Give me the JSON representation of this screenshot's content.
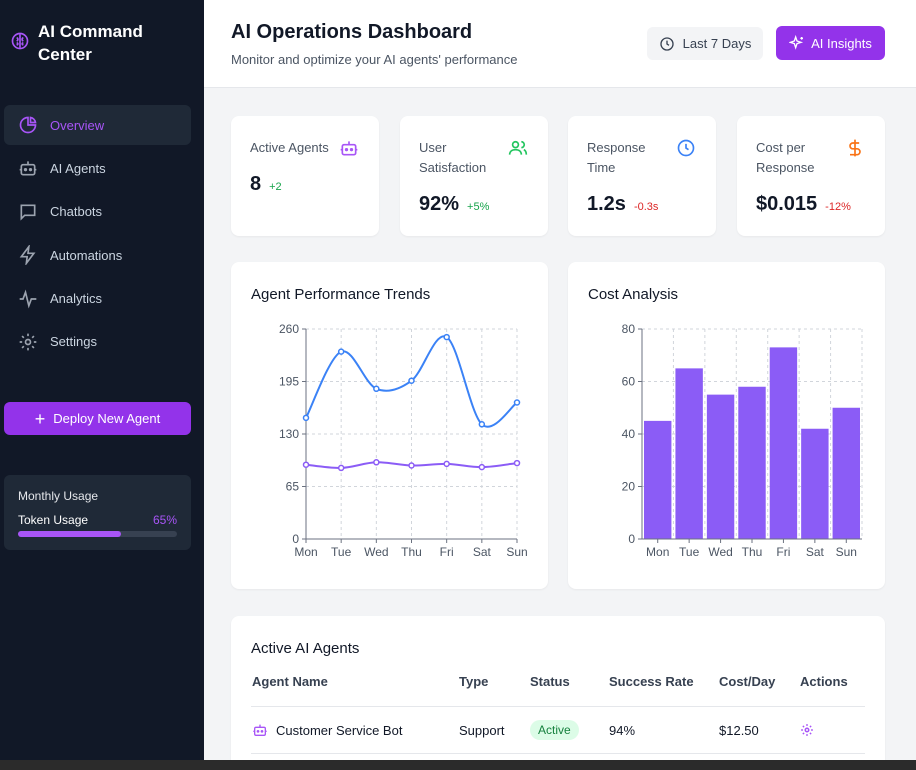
{
  "app": {
    "title": "AI Command Center"
  },
  "sidebar": {
    "items": [
      {
        "label": "Overview",
        "icon": "pie-chart-icon",
        "active": true
      },
      {
        "label": "AI Agents",
        "icon": "bot-icon"
      },
      {
        "label": "Chatbots",
        "icon": "chat-icon"
      },
      {
        "label": "Automations",
        "icon": "lightning-icon"
      },
      {
        "label": "Analytics",
        "icon": "activity-icon"
      },
      {
        "label": "Settings",
        "icon": "gear-icon"
      }
    ],
    "deploy_label": "Deploy New Agent",
    "usage": {
      "title": "Monthly Usage",
      "label": "Token Usage",
      "percent_text": "65%",
      "percent": 65
    }
  },
  "header": {
    "title": "AI Operations Dashboard",
    "subtitle": "Monitor and optimize your AI agents' performance",
    "range_label": "Last 7 Days",
    "insights_label": "AI Insights"
  },
  "stats": [
    {
      "label": "Active Agents",
      "value": "8",
      "change": "+2",
      "trend": "up",
      "icon": "bot-icon",
      "color": "#a855f7"
    },
    {
      "label": "User Satisfaction",
      "value": "92%",
      "change": "+5%",
      "trend": "up",
      "icon": "users-icon",
      "color": "#22c55e"
    },
    {
      "label": "Response Time",
      "value": "1.2s",
      "change": "-0.3s",
      "trend": "down",
      "icon": "clock-icon",
      "color": "#3b82f6"
    },
    {
      "label": "Cost per Response",
      "value": "$0.015",
      "change": "-12%",
      "trend": "down",
      "icon": "dollar-icon",
      "color": "#f97316"
    }
  ],
  "chart_data": [
    {
      "type": "line",
      "title": "Agent Performance Trends",
      "categories": [
        "Mon",
        "Tue",
        "Wed",
        "Thu",
        "Fri",
        "Sat",
        "Sun"
      ],
      "ylim": [
        0,
        260
      ],
      "yticks": [
        0,
        65,
        130,
        195,
        260
      ],
      "grid": true,
      "series": [
        {
          "name": "series-1",
          "color": "#3b82f6",
          "values": [
            150,
            232,
            186,
            196,
            250,
            142,
            169
          ]
        },
        {
          "name": "series-2",
          "color": "#8b5cf6",
          "values": [
            92,
            88,
            95,
            91,
            93,
            89,
            94
          ]
        }
      ]
    },
    {
      "type": "bar",
      "title": "Cost Analysis",
      "categories": [
        "Mon",
        "Tue",
        "Wed",
        "Thu",
        "Fri",
        "Sat",
        "Sun"
      ],
      "values": [
        45,
        65,
        55,
        58,
        73,
        42,
        50
      ],
      "ylim": [
        0,
        80
      ],
      "yticks": [
        0,
        20,
        40,
        60,
        80
      ],
      "grid": true,
      "color": "#8b5cf6"
    }
  ],
  "table": {
    "title": "Active AI Agents",
    "columns": [
      "Agent Name",
      "Type",
      "Status",
      "Success Rate",
      "Cost/Day",
      "Actions"
    ],
    "rows": [
      {
        "name": "Customer Service Bot",
        "type": "Support",
        "status": "Active",
        "success_rate": "94%",
        "cost": "$12.50"
      }
    ]
  }
}
